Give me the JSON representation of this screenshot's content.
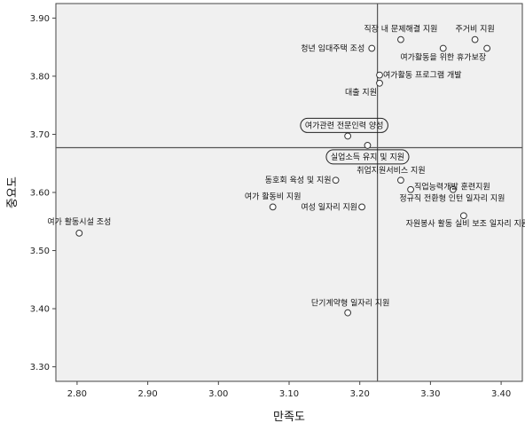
{
  "chart_data": {
    "type": "scatter",
    "title": "",
    "xlabel": "만족도",
    "ylabel": "중요도",
    "xlim": [
      2.77,
      3.43
    ],
    "ylim": [
      3.275,
      3.925
    ],
    "xticks": [
      "2.80",
      "2.90",
      "3.00",
      "3.10",
      "3.20",
      "3.30",
      "3.40"
    ],
    "yticks": [
      "3.30",
      "3.40",
      "3.50",
      "3.60",
      "3.70",
      "3.80",
      "3.90"
    ],
    "reference_lines": {
      "x": 3.225,
      "y": 3.677
    },
    "grid": false,
    "colors": {
      "plot_bg": "#f0f0f0",
      "marker": "#333333",
      "ref_line": "#555555"
    },
    "points": [
      {
        "x": 2.803,
        "y": 3.53,
        "label": "여가 활동시설 조성",
        "boxed": false
      },
      {
        "x": 3.258,
        "y": 3.863,
        "label": "직장 내 문제해결 지원",
        "boxed": false
      },
      {
        "x": 3.363,
        "y": 3.863,
        "label": "주거비 지원",
        "boxed": false
      },
      {
        "x": 3.318,
        "y": 3.848,
        "label": "여가활동을 위한 휴가보장",
        "boxed": false
      },
      {
        "x": 3.38,
        "y": 3.848,
        "label": "",
        "boxed": false
      },
      {
        "x": 3.217,
        "y": 3.848,
        "label": "청년 임대주택 조성",
        "boxed": false
      },
      {
        "x": 3.228,
        "y": 3.802,
        "label": "여가활동 프로그램 개발",
        "boxed": false
      },
      {
        "x": 3.228,
        "y": 3.788,
        "label": "대출 지원",
        "boxed": false
      },
      {
        "x": 3.183,
        "y": 3.697,
        "label": "여가관련 전문인력 양성",
        "boxed": true
      },
      {
        "x": 3.211,
        "y": 3.681,
        "label": "실업소득 유지 및 지원",
        "boxed": true
      },
      {
        "x": 3.258,
        "y": 3.621,
        "label": "취업지원서비스 지원",
        "boxed": false
      },
      {
        "x": 3.166,
        "y": 3.621,
        "label": "동호회 육성 및 지원",
        "boxed": false
      },
      {
        "x": 3.272,
        "y": 3.605,
        "label": "직업능력개발 훈련지원",
        "boxed": false
      },
      {
        "x": 3.332,
        "y": 3.605,
        "label": "정규직 전환형 인턴 일자리 지원",
        "boxed": false
      },
      {
        "x": 3.077,
        "y": 3.575,
        "label": "여가 활동비 지원",
        "boxed": false
      },
      {
        "x": 3.203,
        "y": 3.575,
        "label": "여성 일자리 지원",
        "boxed": false
      },
      {
        "x": 3.347,
        "y": 3.56,
        "label": "자원봉사 활동 실비 보조 일자리 지원",
        "boxed": false
      },
      {
        "x": 3.183,
        "y": 3.393,
        "label": "단기계약형 일자리 지원",
        "boxed": false
      }
    ]
  }
}
